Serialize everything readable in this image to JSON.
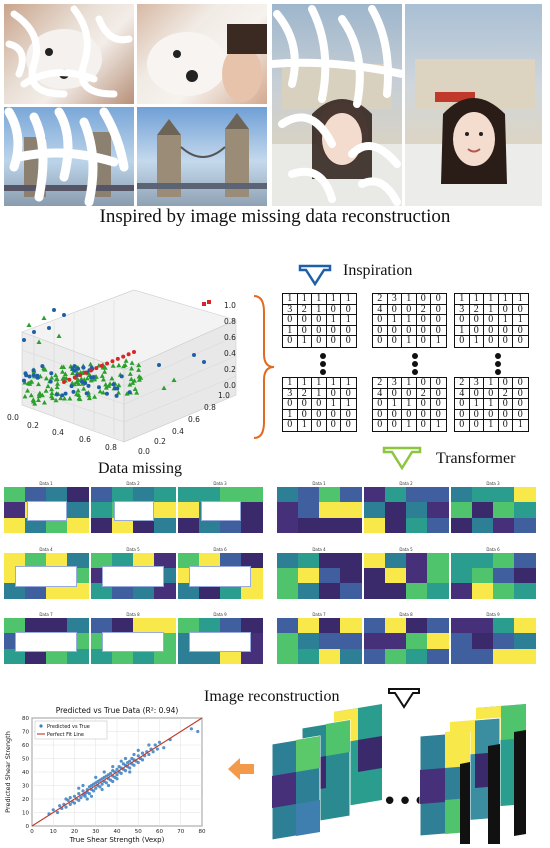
{
  "top_section": {
    "caption": "Inspired by image missing data reconstruction"
  },
  "middle_section": {
    "inspiration_label": "Inspiration",
    "data_missing_label": "Data missing",
    "transformer_label": "Transformer",
    "image_reconstruction_label": "Image reconstruction",
    "scatter3d": {
      "x_ticks": [
        "0.0",
        "0.2",
        "0.4",
        "0.6",
        "0.8"
      ],
      "y_ticks": [
        "0.0",
        "0.2",
        "0.4",
        "0.6",
        "0.8",
        "1.0"
      ],
      "z_ticks": [
        "0.0",
        "0.2",
        "0.4",
        "0.6",
        "0.8",
        "1.0"
      ]
    },
    "matrices": [
      [
        [
          "1",
          "1",
          "1",
          "1",
          "1"
        ],
        [
          "3",
          "2",
          "1",
          "0",
          "0"
        ],
        [
          "0",
          "0",
          "0",
          "1",
          "1"
        ],
        [
          "1",
          "0",
          "0",
          "0",
          "0"
        ],
        [
          "0",
          "1",
          "0",
          "0",
          "0"
        ]
      ],
      [
        [
          "2",
          "3",
          "1",
          "0",
          "0"
        ],
        [
          "4",
          "0",
          "0",
          "2",
          "0"
        ],
        [
          "0",
          "1",
          "1",
          "0",
          "0"
        ],
        [
          "0",
          "0",
          "0",
          "0",
          "0"
        ],
        [
          "0",
          "0",
          "1",
          "0",
          "1"
        ]
      ],
      [
        [
          "1",
          "1",
          "1",
          "1",
          "1"
        ],
        [
          "3",
          "2",
          "1",
          "0",
          "0"
        ],
        [
          "0",
          "0",
          "0",
          "1",
          "1"
        ],
        [
          "1",
          "0",
          "0",
          "0",
          "0"
        ],
        [
          "0",
          "1",
          "0",
          "0",
          "0"
        ]
      ],
      [
        [
          "1",
          "1",
          "1",
          "1",
          "1"
        ],
        [
          "3",
          "2",
          "1",
          "0",
          "0"
        ],
        [
          "0",
          "0",
          "0",
          "1",
          "1"
        ],
        [
          "1",
          "0",
          "0",
          "0",
          "0"
        ],
        [
          "0",
          "1",
          "0",
          "0",
          "0"
        ]
      ],
      [
        [
          "2",
          "3",
          "1",
          "0",
          "0"
        ],
        [
          "4",
          "0",
          "0",
          "2",
          "0"
        ],
        [
          "0",
          "1",
          "1",
          "0",
          "0"
        ],
        [
          "0",
          "0",
          "0",
          "0",
          "0"
        ],
        [
          "0",
          "0",
          "1",
          "0",
          "1"
        ]
      ],
      [
        [
          "2",
          "3",
          "1",
          "0",
          "0"
        ],
        [
          "4",
          "0",
          "0",
          "2",
          "0"
        ],
        [
          "0",
          "1",
          "1",
          "0",
          "0"
        ],
        [
          "0",
          "0",
          "0",
          "0",
          "0"
        ],
        [
          "0",
          "0",
          "1",
          "0",
          "1"
        ]
      ]
    ],
    "heatmap_titles": [
      "Data 1",
      "Data 2",
      "Data 3",
      "Data 4",
      "Data 5",
      "Data 6",
      "Data 7",
      "Data 8",
      "Data 9"
    ]
  },
  "chart_data": {
    "type": "scatter",
    "title": "Predicted vs True Data (R²: 0.94)",
    "xlabel": "True Shear Strength (Vexp)",
    "ylabel": "Predicted Shear Strength",
    "xlim": [
      0,
      80
    ],
    "ylim": [
      0,
      80
    ],
    "x_ticks": [
      "0",
      "10",
      "20",
      "30",
      "40",
      "50",
      "60",
      "70",
      "80"
    ],
    "y_ticks": [
      "0",
      "10",
      "20",
      "30",
      "40",
      "50",
      "60",
      "70",
      "80"
    ],
    "legend": [
      "Predicted vs True",
      "Perfect Fit Line"
    ],
    "legend_placement": "top-left",
    "grid": true,
    "series": [
      {
        "name": "Predicted vs True",
        "points": [
          [
            8,
            9
          ],
          [
            10,
            12
          ],
          [
            12,
            10
          ],
          [
            13,
            15
          ],
          [
            14,
            13
          ],
          [
            15,
            16
          ],
          [
            16,
            14
          ],
          [
            17,
            19
          ],
          [
            18,
            16
          ],
          [
            18,
            21
          ],
          [
            19,
            18
          ],
          [
            20,
            17
          ],
          [
            20,
            22
          ],
          [
            21,
            20
          ],
          [
            22,
            19
          ],
          [
            22,
            24
          ],
          [
            23,
            21
          ],
          [
            24,
            23
          ],
          [
            24,
            26
          ],
          [
            25,
            24
          ],
          [
            25,
            22
          ],
          [
            26,
            27
          ],
          [
            26,
            25
          ],
          [
            27,
            24
          ],
          [
            27,
            29
          ],
          [
            28,
            27
          ],
          [
            28,
            30
          ],
          [
            29,
            26
          ],
          [
            29,
            31
          ],
          [
            30,
            28
          ],
          [
            30,
            32
          ],
          [
            31,
            30
          ],
          [
            31,
            33
          ],
          [
            32,
            29
          ],
          [
            32,
            34
          ],
          [
            33,
            31
          ],
          [
            33,
            35
          ],
          [
            34,
            33
          ],
          [
            34,
            36
          ],
          [
            35,
            32
          ],
          [
            35,
            37
          ],
          [
            36,
            35
          ],
          [
            36,
            38
          ],
          [
            37,
            34
          ],
          [
            37,
            39
          ],
          [
            38,
            37
          ],
          [
            38,
            41
          ],
          [
            39,
            36
          ],
          [
            39,
            40
          ],
          [
            40,
            38
          ],
          [
            40,
            42
          ],
          [
            41,
            40
          ],
          [
            41,
            44
          ],
          [
            42,
            39
          ],
          [
            42,
            43
          ],
          [
            43,
            42
          ],
          [
            43,
            46
          ],
          [
            44,
            41
          ],
          [
            44,
            45
          ],
          [
            45,
            44
          ],
          [
            45,
            47
          ],
          [
            46,
            43
          ],
          [
            46,
            48
          ],
          [
            47,
            46
          ],
          [
            47,
            50
          ],
          [
            48,
            45
          ],
          [
            48,
            49
          ],
          [
            49,
            48
          ],
          [
            50,
            47
          ],
          [
            50,
            52
          ],
          [
            51,
            50
          ],
          [
            52,
            49
          ],
          [
            52,
            54
          ],
          [
            53,
            52
          ],
          [
            54,
            55
          ],
          [
            55,
            53
          ],
          [
            56,
            57
          ],
          [
            57,
            55
          ],
          [
            58,
            60
          ],
          [
            59,
            57
          ],
          [
            60,
            62
          ],
          [
            28,
            22
          ],
          [
            33,
            27
          ],
          [
            38,
            33
          ],
          [
            22,
            28
          ],
          [
            44,
            50
          ],
          [
            48,
            53
          ],
          [
            36,
            30
          ],
          [
            30,
            36
          ],
          [
            26,
            20
          ],
          [
            55,
            60
          ],
          [
            62,
            58
          ],
          [
            40,
            35
          ],
          [
            24,
            30
          ],
          [
            46,
            40
          ],
          [
            50,
            56
          ],
          [
            34,
            40
          ],
          [
            42,
            48
          ],
          [
            38,
            44
          ],
          [
            16,
            20
          ],
          [
            75,
            72
          ],
          [
            78,
            70
          ],
          [
            65,
            64
          ]
        ]
      },
      {
        "name": "Perfect Fit Line",
        "points": [
          [
            0,
            0
          ],
          [
            80,
            80
          ]
        ]
      }
    ]
  }
}
